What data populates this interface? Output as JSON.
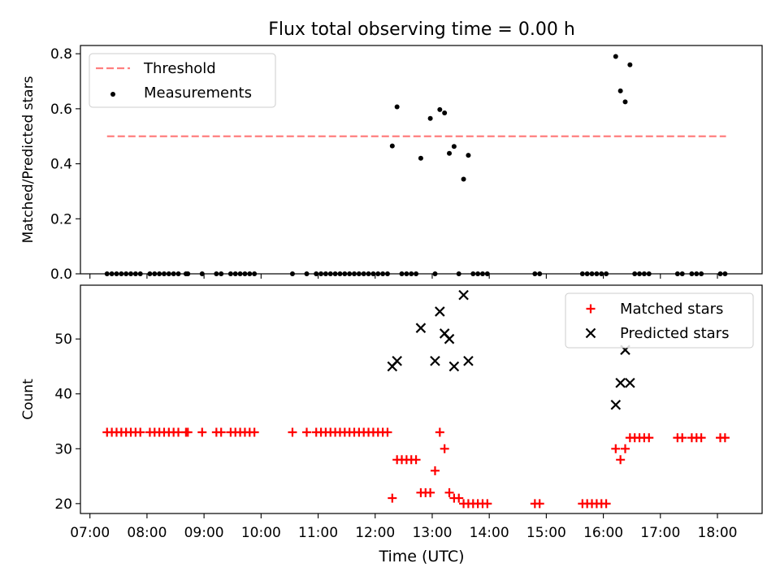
{
  "figure": {
    "title": "Flux total observing time = 0.00 h",
    "xlabel": "Time (UTC)"
  },
  "colors": {
    "threshold": "#ff7f7f",
    "measurements": "#000000",
    "matched": "#ff0000",
    "predicted": "#000000",
    "axes": "#000000"
  },
  "chart_data": [
    {
      "type": "scatter",
      "panel": "top",
      "ylabel": "Matched/Predicted stars",
      "xlim": [
        "06:50",
        "18:47"
      ],
      "ylim": [
        0,
        0.83
      ],
      "yticks": [
        0.0,
        0.2,
        0.4,
        0.6,
        0.8
      ],
      "ytick_labels": [
        "0.0",
        "0.2",
        "0.4",
        "0.6",
        "0.8"
      ],
      "legend_position": "upper-left",
      "threshold": {
        "name": "Threshold",
        "y": 0.5,
        "x": [
          "07:18",
          "18:09"
        ]
      },
      "series": [
        {
          "name": "Measurements",
          "points": [
            [
              "07:18",
              0
            ],
            [
              "07:23",
              0
            ],
            [
              "07:28",
              0
            ],
            [
              "07:33",
              0
            ],
            [
              "07:38",
              0
            ],
            [
              "07:43",
              0
            ],
            [
              "07:48",
              0
            ],
            [
              "07:53",
              0
            ],
            [
              "08:03",
              0
            ],
            [
              "08:08",
              0
            ],
            [
              "08:13",
              0
            ],
            [
              "08:18",
              0
            ],
            [
              "08:23",
              0
            ],
            [
              "08:28",
              0
            ],
            [
              "08:33",
              0
            ],
            [
              "08:41",
              0
            ],
            [
              "08:43",
              0
            ],
            [
              "08:58",
              0
            ],
            [
              "09:13",
              0
            ],
            [
              "09:18",
              0
            ],
            [
              "09:28",
              0
            ],
            [
              "09:33",
              0
            ],
            [
              "09:38",
              0
            ],
            [
              "09:43",
              0
            ],
            [
              "09:48",
              0
            ],
            [
              "09:53",
              0
            ],
            [
              "10:33",
              0
            ],
            [
              "10:48",
              0
            ],
            [
              "10:58",
              0
            ],
            [
              "11:03",
              0
            ],
            [
              "11:08",
              0
            ],
            [
              "11:13",
              0
            ],
            [
              "11:18",
              0
            ],
            [
              "11:23",
              0
            ],
            [
              "11:28",
              0
            ],
            [
              "11:33",
              0
            ],
            [
              "11:38",
              0
            ],
            [
              "11:43",
              0
            ],
            [
              "11:48",
              0
            ],
            [
              "11:53",
              0
            ],
            [
              "11:58",
              0
            ],
            [
              "12:03",
              0
            ],
            [
              "12:08",
              0
            ],
            [
              "12:13",
              0
            ],
            [
              "12:18",
              0.465
            ],
            [
              "12:23",
              0.607
            ],
            [
              "12:28",
              0
            ],
            [
              "12:33",
              0
            ],
            [
              "12:38",
              0
            ],
            [
              "12:43",
              0
            ],
            [
              "12:48",
              0.42
            ],
            [
              "12:58",
              0.565
            ],
            [
              "13:03",
              0
            ],
            [
              "13:08",
              0.597
            ],
            [
              "13:13",
              0.585
            ],
            [
              "13:18",
              0.438
            ],
            [
              "13:23",
              0.463
            ],
            [
              "13:28",
              0
            ],
            [
              "13:33",
              0.344
            ],
            [
              "13:38",
              0.431
            ],
            [
              "13:43",
              0
            ],
            [
              "13:48",
              0
            ],
            [
              "13:53",
              0
            ],
            [
              "13:58",
              0
            ],
            [
              "14:48",
              0
            ],
            [
              "14:53",
              0
            ],
            [
              "15:38",
              0
            ],
            [
              "15:43",
              0
            ],
            [
              "15:48",
              0
            ],
            [
              "15:53",
              0
            ],
            [
              "15:58",
              0
            ],
            [
              "16:03",
              0
            ],
            [
              "16:13",
              0.79
            ],
            [
              "16:18",
              0.665
            ],
            [
              "16:23",
              0.625
            ],
            [
              "16:28",
              0.76
            ],
            [
              "16:33",
              0
            ],
            [
              "16:38",
              0
            ],
            [
              "16:43",
              0
            ],
            [
              "16:48",
              0
            ],
            [
              "17:18",
              0
            ],
            [
              "17:23",
              0
            ],
            [
              "17:33",
              0
            ],
            [
              "17:38",
              0
            ],
            [
              "17:43",
              0
            ],
            [
              "18:03",
              0
            ],
            [
              "18:08",
              0
            ]
          ]
        }
      ]
    },
    {
      "type": "scatter",
      "panel": "bottom",
      "ylabel": "Count",
      "xlim": [
        "06:50",
        "18:47"
      ],
      "ylim": [
        18.2,
        59.8
      ],
      "yticks": [
        20,
        30,
        40,
        50
      ],
      "ytick_labels": [
        "20",
        "30",
        "40",
        "50"
      ],
      "xticks": [
        "07:00",
        "08:00",
        "09:00",
        "10:00",
        "11:00",
        "12:00",
        "13:00",
        "14:00",
        "15:00",
        "16:00",
        "17:00",
        "18:00"
      ],
      "legend_position": "upper-right",
      "series": [
        {
          "name": "Matched stars",
          "marker": "+",
          "points": [
            [
              "07:18",
              33
            ],
            [
              "07:23",
              33
            ],
            [
              "07:28",
              33
            ],
            [
              "07:33",
              33
            ],
            [
              "07:38",
              33
            ],
            [
              "07:43",
              33
            ],
            [
              "07:48",
              33
            ],
            [
              "07:53",
              33
            ],
            [
              "08:03",
              33
            ],
            [
              "08:08",
              33
            ],
            [
              "08:13",
              33
            ],
            [
              "08:18",
              33
            ],
            [
              "08:23",
              33
            ],
            [
              "08:28",
              33
            ],
            [
              "08:33",
              33
            ],
            [
              "08:41",
              33
            ],
            [
              "08:43",
              33
            ],
            [
              "08:58",
              33
            ],
            [
              "09:13",
              33
            ],
            [
              "09:18",
              33
            ],
            [
              "09:28",
              33
            ],
            [
              "09:33",
              33
            ],
            [
              "09:38",
              33
            ],
            [
              "09:43",
              33
            ],
            [
              "09:48",
              33
            ],
            [
              "09:53",
              33
            ],
            [
              "10:33",
              33
            ],
            [
              "10:48",
              33
            ],
            [
              "10:58",
              33
            ],
            [
              "11:03",
              33
            ],
            [
              "11:08",
              33
            ],
            [
              "11:13",
              33
            ],
            [
              "11:18",
              33
            ],
            [
              "11:23",
              33
            ],
            [
              "11:28",
              33
            ],
            [
              "11:33",
              33
            ],
            [
              "11:38",
              33
            ],
            [
              "11:43",
              33
            ],
            [
              "11:48",
              33
            ],
            [
              "11:53",
              33
            ],
            [
              "11:58",
              33
            ],
            [
              "12:03",
              33
            ],
            [
              "12:08",
              33
            ],
            [
              "12:13",
              33
            ],
            [
              "12:18",
              21
            ],
            [
              "12:23",
              28
            ],
            [
              "12:28",
              28
            ],
            [
              "12:33",
              28
            ],
            [
              "12:38",
              28
            ],
            [
              "12:43",
              28
            ],
            [
              "12:48",
              22
            ],
            [
              "12:53",
              22
            ],
            [
              "12:58",
              22
            ],
            [
              "13:03",
              26
            ],
            [
              "13:08",
              33
            ],
            [
              "13:13",
              30
            ],
            [
              "13:18",
              22
            ],
            [
              "13:23",
              21
            ],
            [
              "13:28",
              21
            ],
            [
              "13:33",
              20
            ],
            [
              "13:38",
              20
            ],
            [
              "13:43",
              20
            ],
            [
              "13:48",
              20
            ],
            [
              "13:53",
              20
            ],
            [
              "13:58",
              20
            ],
            [
              "14:48",
              20
            ],
            [
              "14:53",
              20
            ],
            [
              "15:38",
              20
            ],
            [
              "15:43",
              20
            ],
            [
              "15:48",
              20
            ],
            [
              "15:53",
              20
            ],
            [
              "15:58",
              20
            ],
            [
              "16:03",
              20
            ],
            [
              "16:13",
              30
            ],
            [
              "16:18",
              28
            ],
            [
              "16:23",
              30
            ],
            [
              "16:28",
              32
            ],
            [
              "16:33",
              32
            ],
            [
              "16:38",
              32
            ],
            [
              "16:43",
              32
            ],
            [
              "16:48",
              32
            ],
            [
              "17:18",
              32
            ],
            [
              "17:23",
              32
            ],
            [
              "17:33",
              32
            ],
            [
              "17:38",
              32
            ],
            [
              "17:43",
              32
            ],
            [
              "18:03",
              32
            ],
            [
              "18:08",
              32
            ]
          ]
        },
        {
          "name": "Predicted stars",
          "marker": "x",
          "points": [
            [
              "12:18",
              45
            ],
            [
              "12:23",
              46
            ],
            [
              "12:48",
              52
            ],
            [
              "13:03",
              46
            ],
            [
              "13:08",
              55
            ],
            [
              "13:13",
              51
            ],
            [
              "13:18",
              50
            ],
            [
              "13:23",
              45
            ],
            [
              "13:33",
              58
            ],
            [
              "13:38",
              46
            ],
            [
              "16:13",
              38
            ],
            [
              "16:18",
              42
            ],
            [
              "16:23",
              48
            ],
            [
              "16:28",
              42
            ]
          ]
        }
      ]
    }
  ]
}
